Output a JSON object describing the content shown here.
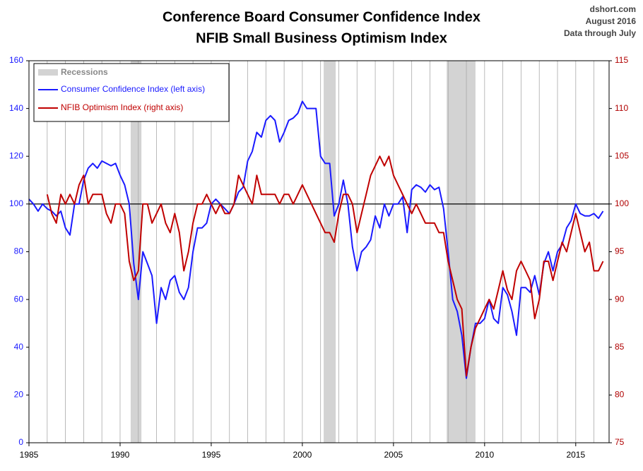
{
  "chart_data": {
    "type": "line",
    "title": [
      "Conference Board Consumer Confidence Index",
      "NFIB Small Business Optimism Index"
    ],
    "annotations": [
      "dshort.com",
      "August 2016",
      "Data through July"
    ],
    "xlim": [
      1985,
      2016.83
    ],
    "xticks": [
      1985,
      1990,
      1995,
      2000,
      2005,
      2010,
      2015
    ],
    "xminorticks": [
      1986,
      1987,
      1988,
      1989,
      1991,
      1992,
      1993,
      1994,
      1996,
      1997,
      1998,
      1999,
      2001,
      2002,
      2003,
      2004,
      2006,
      2007,
      2008,
      2009,
      2011,
      2012,
      2013,
      2014,
      2016
    ],
    "ylim": [
      0,
      160
    ],
    "yticks": [
      0,
      20,
      40,
      60,
      80,
      100,
      120,
      140,
      160
    ],
    "ycolor": "#1a1aff",
    "y2lim": [
      75,
      115
    ],
    "y2ticks": [
      75,
      80,
      85,
      90,
      95,
      100,
      105,
      110,
      115
    ],
    "y2color": "#b00000",
    "hline": 100,
    "grid": true,
    "legend": "upper left",
    "recessions": {
      "name": "Recessions",
      "color": "#d3d3d3",
      "spans": [
        [
          1990.58,
          1991.17
        ],
        [
          2001.17,
          2001.83
        ],
        [
          2007.92,
          2009.5
        ]
      ]
    },
    "series": [
      {
        "name": "Consumer Confidence Index (left axis)",
        "color": "#1a1aff",
        "axis": "y",
        "x": [
          1985,
          1985.25,
          1985.5,
          1985.75,
          1986,
          1986.25,
          1986.5,
          1986.75,
          1987,
          1987.25,
          1987.5,
          1987.75,
          1988,
          1988.25,
          1988.5,
          1988.75,
          1989,
          1989.25,
          1989.5,
          1989.75,
          1990,
          1990.25,
          1990.5,
          1990.75,
          1991,
          1991.25,
          1991.5,
          1991.75,
          1992,
          1992.25,
          1992.5,
          1992.75,
          1993,
          1993.25,
          1993.5,
          1993.75,
          1994,
          1994.25,
          1994.5,
          1994.75,
          1995,
          1995.25,
          1995.5,
          1995.75,
          1996,
          1996.25,
          1996.5,
          1996.75,
          1997,
          1997.25,
          1997.5,
          1997.75,
          1998,
          1998.25,
          1998.5,
          1998.75,
          1999,
          1999.25,
          1999.5,
          1999.75,
          2000,
          2000.25,
          2000.5,
          2000.75,
          2001,
          2001.25,
          2001.5,
          2001.75,
          2002,
          2002.25,
          2002.5,
          2002.75,
          2003,
          2003.25,
          2003.5,
          2003.75,
          2004,
          2004.25,
          2004.5,
          2004.75,
          2005,
          2005.25,
          2005.5,
          2005.75,
          2006,
          2006.25,
          2006.5,
          2006.75,
          2007,
          2007.25,
          2007.5,
          2007.75,
          2008,
          2008.25,
          2008.5,
          2008.75,
          2009,
          2009.25,
          2009.5,
          2009.75,
          2010,
          2010.25,
          2010.5,
          2010.75,
          2011,
          2011.25,
          2011.5,
          2011.75,
          2012,
          2012.25,
          2012.5,
          2012.75,
          2013,
          2013.25,
          2013.5,
          2013.75,
          2014,
          2014.25,
          2014.5,
          2014.75,
          2015,
          2015.25,
          2015.5,
          2015.75,
          2016,
          2016.25,
          2016.5
        ],
        "values": [
          102,
          100,
          97,
          100,
          98,
          97,
          95,
          97,
          90,
          87,
          100,
          100,
          110,
          115,
          117,
          115,
          118,
          117,
          116,
          117,
          112,
          108,
          100,
          75,
          60,
          80,
          75,
          70,
          50,
          65,
          60,
          68,
          70,
          63,
          60,
          65,
          80,
          90,
          90,
          92,
          100,
          102,
          100,
          98,
          96,
          100,
          105,
          107,
          118,
          122,
          130,
          128,
          135,
          137,
          135,
          126,
          130,
          135,
          136,
          138,
          143,
          140,
          140,
          140,
          120,
          117,
          117,
          95,
          100,
          110,
          100,
          82,
          72,
          80,
          82,
          85,
          95,
          90,
          100,
          95,
          100,
          100,
          103,
          88,
          106,
          108,
          107,
          105,
          108,
          106,
          107,
          98,
          80,
          60,
          55,
          45,
          27,
          40,
          50,
          50,
          52,
          60,
          52,
          50,
          65,
          62,
          55,
          45,
          65,
          65,
          63,
          70,
          62,
          75,
          80,
          72,
          80,
          83,
          90,
          93,
          100,
          96,
          95,
          95,
          96,
          94,
          97
        ]
      },
      {
        "name": "NFIB Optimism Index (right axis)",
        "color": "#c00000",
        "axis": "y2",
        "x": [
          1986,
          1986.25,
          1986.5,
          1986.75,
          1987,
          1987.25,
          1987.5,
          1987.75,
          1988,
          1988.25,
          1988.5,
          1988.75,
          1989,
          1989.25,
          1989.5,
          1989.75,
          1990,
          1990.25,
          1990.5,
          1990.75,
          1991,
          1991.25,
          1991.5,
          1991.75,
          1992,
          1992.25,
          1992.5,
          1992.75,
          1993,
          1993.25,
          1993.5,
          1993.75,
          1994,
          1994.25,
          1994.5,
          1994.75,
          1995,
          1995.25,
          1995.5,
          1995.75,
          1996,
          1996.25,
          1996.5,
          1996.75,
          1997,
          1997.25,
          1997.5,
          1997.75,
          1998,
          1998.25,
          1998.5,
          1998.75,
          1999,
          1999.25,
          1999.5,
          1999.75,
          2000,
          2000.25,
          2000.5,
          2000.75,
          2001,
          2001.25,
          2001.5,
          2001.75,
          2002,
          2002.25,
          2002.5,
          2002.75,
          2003,
          2003.25,
          2003.5,
          2003.75,
          2004,
          2004.25,
          2004.5,
          2004.75,
          2005,
          2005.25,
          2005.5,
          2005.75,
          2006,
          2006.25,
          2006.5,
          2006.75,
          2007,
          2007.25,
          2007.5,
          2007.75,
          2008,
          2008.25,
          2008.5,
          2008.75,
          2009,
          2009.25,
          2009.5,
          2009.75,
          2010,
          2010.25,
          2010.5,
          2010.75,
          2011,
          2011.25,
          2011.5,
          2011.75,
          2012,
          2012.25,
          2012.5,
          2012.75,
          2013,
          2013.25,
          2013.5,
          2013.75,
          2014,
          2014.25,
          2014.5,
          2014.75,
          2015,
          2015.25,
          2015.5,
          2015.75,
          2016,
          2016.25,
          2016.5
        ],
        "values": [
          101,
          99,
          98,
          101,
          100,
          101,
          100,
          102,
          103,
          100,
          101,
          101,
          101,
          99,
          98,
          100,
          100,
          99,
          94,
          92,
          93,
          100,
          100,
          98,
          99,
          100,
          98,
          97,
          99,
          97,
          93,
          95,
          98,
          100,
          100,
          101,
          100,
          99,
          100,
          99,
          99,
          100,
          103,
          102,
          101,
          100,
          103,
          101,
          101,
          101,
          101,
          100,
          101,
          101,
          100,
          101,
          102,
          101,
          100,
          99,
          98,
          97,
          97,
          96,
          99,
          101,
          101,
          100,
          97,
          99,
          101,
          103,
          104,
          105,
          104,
          105,
          103,
          102,
          101,
          100,
          99,
          100,
          99,
          98,
          98,
          98,
          97,
          97,
          94,
          92,
          90,
          89,
          82,
          85,
          87,
          88,
          89,
          90,
          89,
          91,
          93,
          91,
          90,
          93,
          94,
          93,
          92,
          88,
          90,
          94,
          94,
          92,
          94,
          96,
          95,
          97,
          99,
          97,
          95,
          96,
          93,
          93,
          94
        ]
      }
    ]
  }
}
